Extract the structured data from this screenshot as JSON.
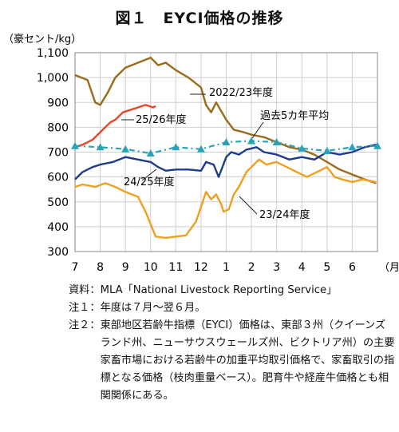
{
  "title": "図１　EYCI価格の推移",
  "chart_data": {
    "type": "line",
    "ylabel": "（豪セント/kg）",
    "xlabel": "（月）",
    "ylim": [
      300,
      1100
    ],
    "yticks": [
      "300",
      "400",
      "500",
      "600",
      "700",
      "800",
      "900",
      "1,000",
      "1,100"
    ],
    "month_labels": [
      "7",
      "8",
      "9",
      "10",
      "11",
      "12",
      "1",
      "2",
      "3",
      "4",
      "5",
      "6"
    ],
    "grid": true,
    "series": [
      {
        "name": "2022/23年度",
        "color": "#9b6b1c",
        "points": [
          [
            0,
            1010
          ],
          [
            0.5,
            990
          ],
          [
            0.8,
            900
          ],
          [
            1.0,
            890
          ],
          [
            1.3,
            940
          ],
          [
            1.6,
            1000
          ],
          [
            2.0,
            1040
          ],
          [
            2.5,
            1060
          ],
          [
            3.0,
            1080
          ],
          [
            3.3,
            1050
          ],
          [
            3.6,
            1060
          ],
          [
            4.0,
            1030
          ],
          [
            4.5,
            1000
          ],
          [
            5.0,
            960
          ],
          [
            5.2,
            890
          ],
          [
            5.4,
            860
          ],
          [
            5.6,
            900
          ],
          [
            6.0,
            830
          ],
          [
            6.3,
            790
          ],
          [
            6.7,
            780
          ],
          [
            7.0,
            770
          ],
          [
            7.5,
            760
          ],
          [
            8.0,
            740
          ],
          [
            8.5,
            720
          ],
          [
            9.0,
            710
          ],
          [
            9.5,
            690
          ],
          [
            10.0,
            660
          ],
          [
            10.5,
            630
          ],
          [
            11.0,
            610
          ],
          [
            11.5,
            590
          ],
          [
            11.95,
            575
          ]
        ]
      },
      {
        "name": "23/24年度",
        "color": "#f0a020",
        "points": [
          [
            0,
            560
          ],
          [
            0.3,
            570
          ],
          [
            0.8,
            560
          ],
          [
            1.2,
            575
          ],
          [
            1.6,
            560
          ],
          [
            2.0,
            540
          ],
          [
            2.5,
            520
          ],
          [
            2.8,
            460
          ],
          [
            3.0,
            410
          ],
          [
            3.2,
            360
          ],
          [
            3.6,
            355
          ],
          [
            4.0,
            360
          ],
          [
            4.4,
            365
          ],
          [
            4.8,
            420
          ],
          [
            5.0,
            480
          ],
          [
            5.2,
            540
          ],
          [
            5.4,
            510
          ],
          [
            5.6,
            530
          ],
          [
            5.8,
            490
          ],
          [
            5.9,
            460
          ],
          [
            6.1,
            470
          ],
          [
            6.3,
            530
          ],
          [
            6.5,
            560
          ],
          [
            6.8,
            620
          ],
          [
            7.0,
            640
          ],
          [
            7.3,
            670
          ],
          [
            7.6,
            650
          ],
          [
            8.0,
            660
          ],
          [
            8.4,
            640
          ],
          [
            8.8,
            620
          ],
          [
            9.2,
            600
          ],
          [
            9.6,
            620
          ],
          [
            10.0,
            640
          ],
          [
            10.3,
            600
          ],
          [
            10.6,
            590
          ],
          [
            11.0,
            580
          ],
          [
            11.4,
            590
          ],
          [
            11.95,
            580
          ]
        ]
      },
      {
        "name": "24/25年度",
        "color": "#1f3c88",
        "points": [
          [
            0,
            590
          ],
          [
            0.3,
            620
          ],
          [
            0.7,
            640
          ],
          [
            1.0,
            650
          ],
          [
            1.5,
            660
          ],
          [
            2.0,
            680
          ],
          [
            2.5,
            670
          ],
          [
            3.0,
            660
          ],
          [
            3.3,
            640
          ],
          [
            3.6,
            625
          ],
          [
            4.0,
            630
          ],
          [
            4.5,
            630
          ],
          [
            5.0,
            625
          ],
          [
            5.2,
            660
          ],
          [
            5.5,
            650
          ],
          [
            5.7,
            600
          ],
          [
            6.0,
            680
          ],
          [
            6.2,
            700
          ],
          [
            6.5,
            690
          ],
          [
            6.8,
            710
          ],
          [
            7.2,
            720
          ],
          [
            7.5,
            700
          ],
          [
            8.0,
            690
          ],
          [
            8.5,
            670
          ],
          [
            9.0,
            680
          ],
          [
            9.5,
            670
          ],
          [
            10.0,
            700
          ],
          [
            10.5,
            690
          ],
          [
            11.0,
            700
          ],
          [
            11.5,
            720
          ],
          [
            11.95,
            730
          ]
        ]
      },
      {
        "name": "25/26年度",
        "color": "#e8472a",
        "points": [
          [
            0,
            720
          ],
          [
            0.3,
            730
          ],
          [
            0.7,
            750
          ],
          [
            1.0,
            780
          ],
          [
            1.2,
            800
          ],
          [
            1.4,
            820
          ],
          [
            1.6,
            830
          ],
          [
            1.9,
            860
          ],
          [
            2.2,
            870
          ],
          [
            2.5,
            880
          ],
          [
            2.8,
            890
          ],
          [
            3.1,
            880
          ],
          [
            3.2,
            885
          ]
        ]
      },
      {
        "name": "過去5カ年平均",
        "color": "#2aa3b8",
        "dashed": true,
        "points": [
          [
            0,
            725
          ],
          [
            1,
            720
          ],
          [
            2,
            712
          ],
          [
            3,
            695
          ],
          [
            4,
            720
          ],
          [
            5,
            712
          ],
          [
            6,
            740
          ],
          [
            7,
            745
          ],
          [
            8,
            740
          ],
          [
            9,
            715
          ],
          [
            10,
            705
          ],
          [
            11,
            720
          ],
          [
            12,
            725
          ]
        ]
      }
    ]
  },
  "notes": [
    {
      "key": "資料：",
      "text": "MLA「National Livestock Reporting Service」"
    },
    {
      "key": "注１：",
      "text": "年度は７月～翌６月。"
    },
    {
      "key": "注２：",
      "text": "東部地区若齢牛指標（EYCI）価格は、東部３州（クイーンズランド州、ニューサウスウェールズ州、ビクトリア州）の主要家畜市場における若齢牛の加重平均取引価格で、家畜取引の指標となる価格（枝肉重量ベース）。肥育牛や経産牛価格とも相関関係にある。"
    }
  ]
}
